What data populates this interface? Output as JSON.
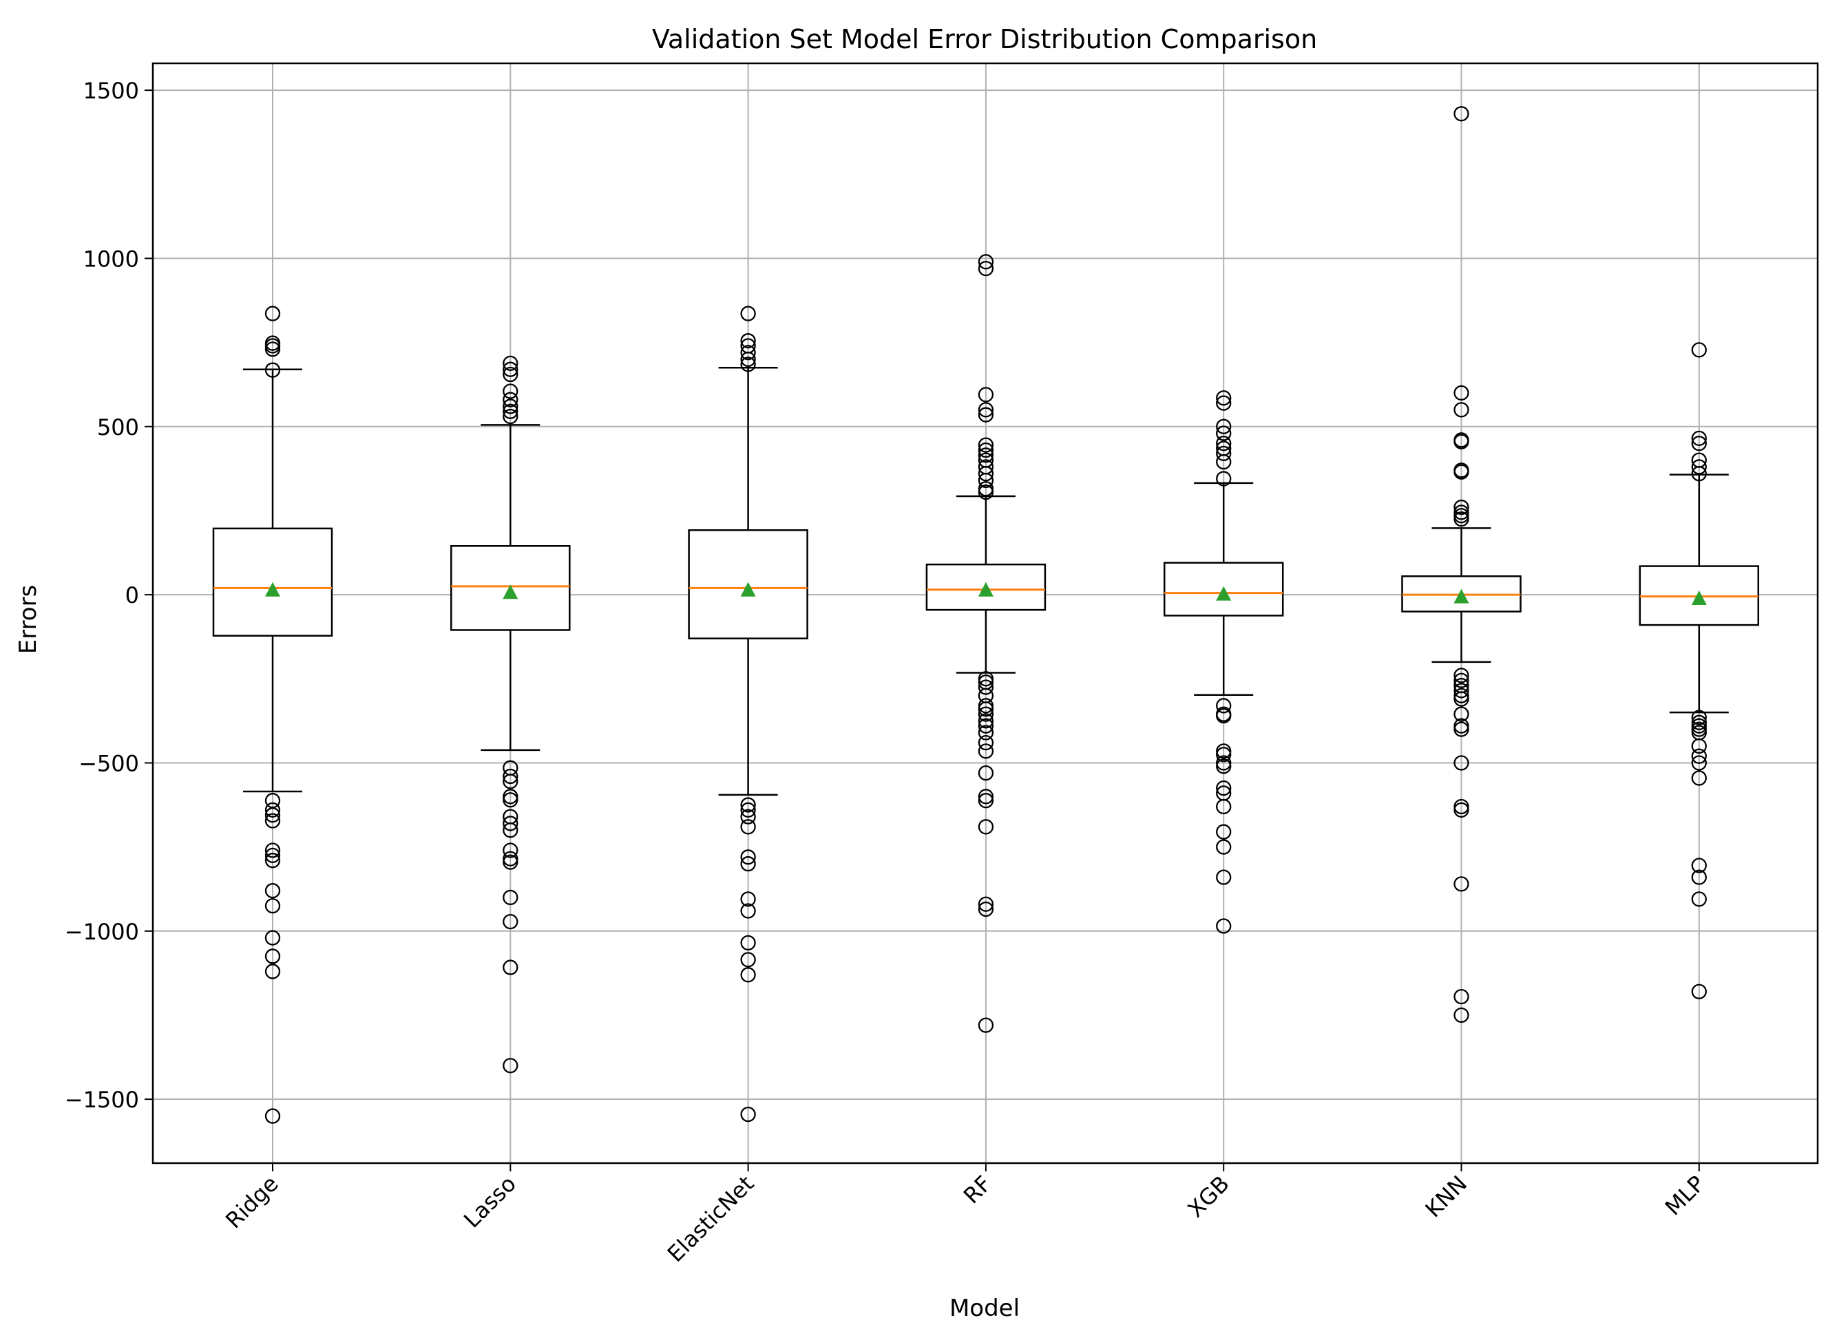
{
  "chart_data": {
    "type": "box",
    "title": "Validation Set Model Error Distribution Comparison",
    "xlabel": "Model",
    "ylabel": "Errors",
    "ylim": [
      -1690,
      1580
    ],
    "yticks": [
      1500,
      1000,
      500,
      0,
      -500,
      -1000,
      -1500
    ],
    "ytick_labels": [
      "1500",
      "1000",
      "500",
      "0",
      "−500",
      "−1000",
      "−1500"
    ],
    "grid": true,
    "colors": {
      "box": "#000000",
      "median": "#ff7f0e",
      "mean": "#2ca02c",
      "grid": "#b0b0b0"
    },
    "series": [
      {
        "name": "Ridge",
        "whisker_low": -585,
        "q1": -122,
        "median": 20,
        "q3": 197,
        "whisker_high": 670,
        "mean": 15,
        "outliers_high": [
          668,
          730,
          740,
          748,
          836
        ],
        "outliers_low": [
          -612,
          -640,
          -655,
          -672,
          -760,
          -775,
          -790,
          -880,
          -925,
          -1020,
          -1075,
          -1120,
          -1550
        ]
      },
      {
        "name": "Lasso",
        "whisker_low": -462,
        "q1": -105,
        "median": 25,
        "q3": 145,
        "whisker_high": 505,
        "mean": 8,
        "outliers_high": [
          530,
          545,
          560,
          580,
          605,
          655,
          670,
          688
        ],
        "outliers_low": [
          -515,
          -540,
          -555,
          -600,
          -610,
          -660,
          -680,
          -700,
          -760,
          -785,
          -795,
          -900,
          -972,
          -1108,
          -1400
        ]
      },
      {
        "name": "ElasticNet",
        "whisker_low": -595,
        "q1": -130,
        "median": 20,
        "q3": 192,
        "whisker_high": 675,
        "mean": 15,
        "outliers_high": [
          685,
          700,
          720,
          740,
          755,
          836
        ],
        "outliers_low": [
          -625,
          -640,
          -660,
          -690,
          -780,
          -800,
          -905,
          -940,
          -1035,
          -1085,
          -1130,
          -1545
        ]
      },
      {
        "name": "RF",
        "whisker_low": -232,
        "q1": -45,
        "median": 15,
        "q3": 90,
        "whisker_high": 293,
        "mean": 15,
        "outliers_high": [
          305,
          315,
          340,
          360,
          380,
          400,
          415,
          430,
          445,
          535,
          550,
          595,
          970,
          990
        ],
        "outliers_low": [
          -250,
          -260,
          -275,
          -300,
          -330,
          -340,
          -355,
          -375,
          -390,
          -410,
          -440,
          -465,
          -530,
          -600,
          -612,
          -690,
          -920,
          -935,
          -1280
        ]
      },
      {
        "name": "XGB",
        "whisker_low": -298,
        "q1": -62,
        "median": 5,
        "q3": 95,
        "whisker_high": 332,
        "mean": 3,
        "outliers_high": [
          345,
          395,
          420,
          435,
          450,
          480,
          500,
          570,
          585
        ],
        "outliers_low": [
          -330,
          -355,
          -360,
          -465,
          -475,
          -500,
          -510,
          -575,
          -590,
          -630,
          -705,
          -750,
          -840,
          -985
        ]
      },
      {
        "name": "KNN",
        "whisker_low": -200,
        "q1": -50,
        "median": 0,
        "q3": 55,
        "whisker_high": 198,
        "mean": -5,
        "outliers_high": [
          225,
          235,
          245,
          260,
          365,
          370,
          455,
          460,
          550,
          600,
          1430
        ],
        "outliers_low": [
          -240,
          -255,
          -270,
          -285,
          -300,
          -310,
          -355,
          -390,
          -400,
          -500,
          -630,
          -640,
          -860,
          -1195,
          -1250
        ]
      },
      {
        "name": "MLP",
        "whisker_low": -350,
        "q1": -90,
        "median": -5,
        "q3": 85,
        "whisker_high": 357,
        "mean": -10,
        "outliers_high": [
          360,
          380,
          400,
          450,
          465,
          728
        ],
        "outliers_low": [
          -365,
          -380,
          -390,
          -400,
          -410,
          -450,
          -480,
          -500,
          -545,
          -805,
          -840,
          -905,
          -1180
        ]
      }
    ]
  }
}
